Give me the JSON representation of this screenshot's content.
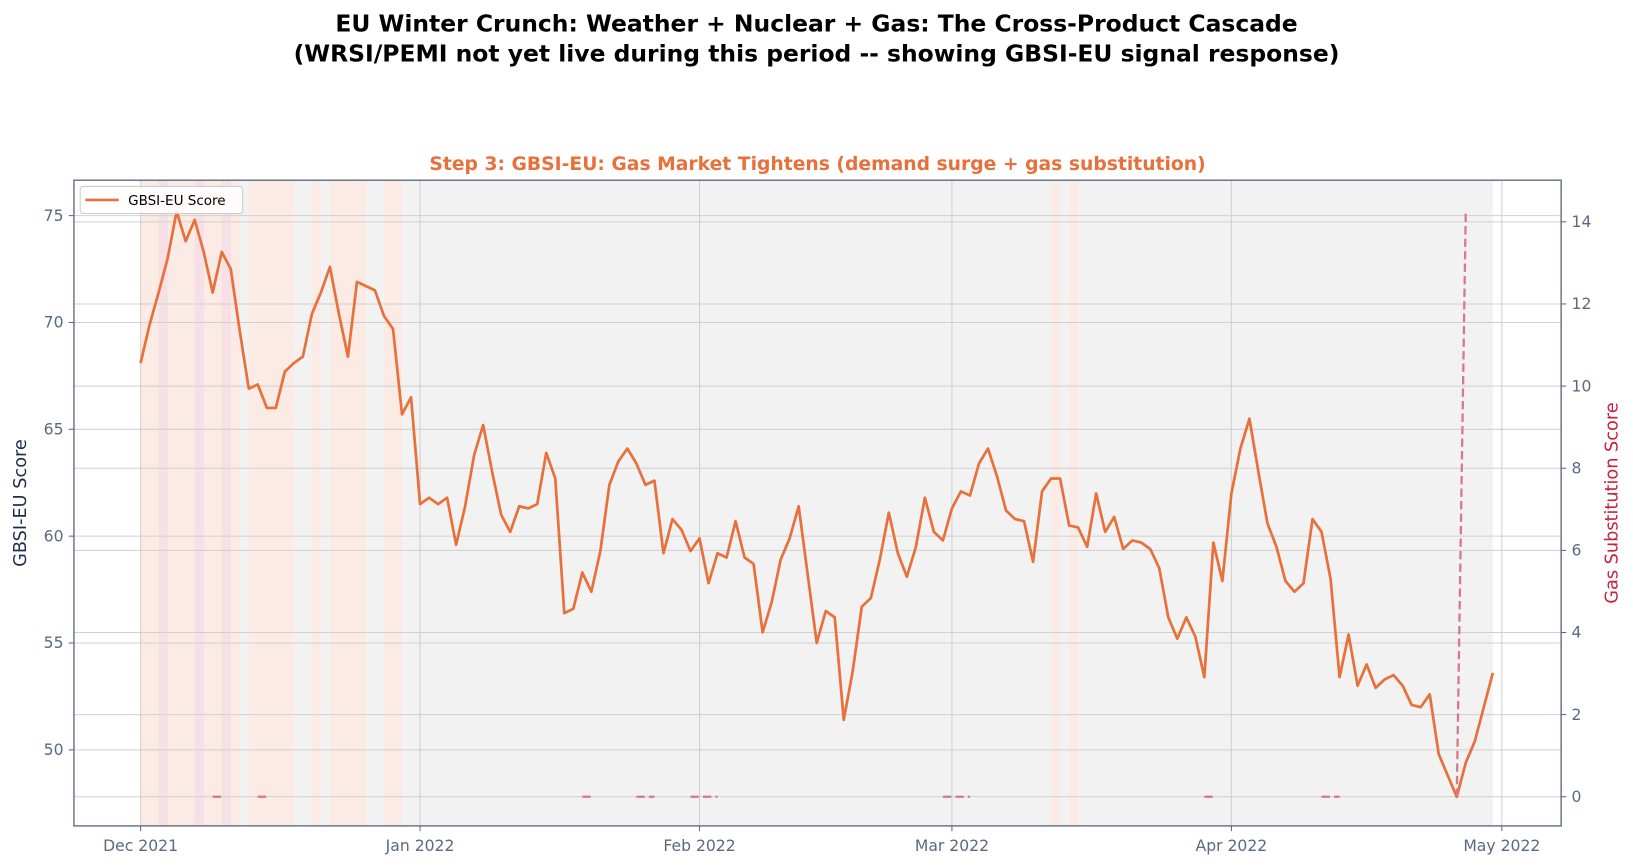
{
  "figure": {
    "title_line1": "EU Winter Crunch: Weather + Nuclear + Gas: The Cross-Product Cascade",
    "title_line2": "(WRSI/PEMI not yet live during this period -- showing GBSI-EU signal response)"
  },
  "chart_data": {
    "type": "line",
    "title": "Step 3: GBSI-EU: Gas Market Tightens (demand surge + gas substitution)",
    "title_color": "#e8703a",
    "ylabel": "GBSI-EU Score",
    "ylabel_color": "#1f2d4d",
    "y2label": "Gas Substitution Score",
    "y2label_color": "#c8213b",
    "ylim": [
      46.7,
      76.7
    ],
    "y2lim": [
      -0.6,
      15.0
    ],
    "yticks": [
      "50",
      "55",
      "60",
      "65",
      "70",
      "75"
    ],
    "y2ticks": [
      "0",
      "2",
      "4",
      "6",
      "8",
      "10",
      "12",
      "14"
    ],
    "xlim": [
      "2021-11-24",
      "2022-05-07"
    ],
    "xticks": [
      {
        "date": "2021-12-01",
        "label": "Dec 2021"
      },
      {
        "date": "2022-01-01",
        "label": "Jan 2022"
      },
      {
        "date": "2022-02-01",
        "label": "Feb 2022"
      },
      {
        "date": "2022-03-01",
        "label": "Mar 2022"
      },
      {
        "date": "2022-04-01",
        "label": "Apr 2022"
      },
      {
        "date": "2022-05-01",
        "label": "May 2022"
      }
    ],
    "grid": true,
    "legend": {
      "placement": "top-left",
      "entries": [
        "GBSI-EU Score"
      ]
    },
    "x": [
      "2021-12-01",
      "2021-12-02",
      "2021-12-03",
      "2021-12-04",
      "2021-12-05",
      "2021-12-06",
      "2021-12-07",
      "2021-12-08",
      "2021-12-09",
      "2021-12-10",
      "2021-12-11",
      "2021-12-12",
      "2021-12-13",
      "2021-12-14",
      "2021-12-15",
      "2021-12-16",
      "2021-12-17",
      "2021-12-18",
      "2021-12-19",
      "2021-12-20",
      "2021-12-21",
      "2021-12-22",
      "2021-12-23",
      "2021-12-24",
      "2021-12-25",
      "2021-12-26",
      "2021-12-27",
      "2021-12-28",
      "2021-12-29",
      "2021-12-30",
      "2021-12-31",
      "2022-01-01",
      "2022-01-02",
      "2022-01-03",
      "2022-01-04",
      "2022-01-05",
      "2022-01-06",
      "2022-01-07",
      "2022-01-08",
      "2022-01-09",
      "2022-01-10",
      "2022-01-11",
      "2022-01-12",
      "2022-01-13",
      "2022-01-14",
      "2022-01-15",
      "2022-01-16",
      "2022-01-17",
      "2022-01-18",
      "2022-01-19",
      "2022-01-20",
      "2022-01-21",
      "2022-01-22",
      "2022-01-23",
      "2022-01-24",
      "2022-01-25",
      "2022-01-26",
      "2022-01-27",
      "2022-01-28",
      "2022-01-29",
      "2022-01-30",
      "2022-01-31",
      "2022-02-01",
      "2022-02-02",
      "2022-02-03",
      "2022-02-04",
      "2022-02-05",
      "2022-02-06",
      "2022-02-07",
      "2022-02-08",
      "2022-02-09",
      "2022-02-10",
      "2022-02-11",
      "2022-02-12",
      "2022-02-13",
      "2022-02-14",
      "2022-02-15",
      "2022-02-16",
      "2022-02-17",
      "2022-02-18",
      "2022-02-19",
      "2022-02-20",
      "2022-02-21",
      "2022-02-22",
      "2022-02-23",
      "2022-02-24",
      "2022-02-25",
      "2022-02-26",
      "2022-02-27",
      "2022-02-28",
      "2022-03-01",
      "2022-03-02",
      "2022-03-03",
      "2022-03-04",
      "2022-03-05",
      "2022-03-06",
      "2022-03-07",
      "2022-03-08",
      "2022-03-09",
      "2022-03-10",
      "2022-03-11",
      "2022-03-12",
      "2022-03-13",
      "2022-03-14",
      "2022-03-15",
      "2022-03-16",
      "2022-03-17",
      "2022-03-18",
      "2022-03-19",
      "2022-03-20",
      "2022-03-21",
      "2022-03-22",
      "2022-03-23",
      "2022-03-24",
      "2022-03-25",
      "2022-03-26",
      "2022-03-27",
      "2022-03-28",
      "2022-03-29",
      "2022-03-30",
      "2022-03-31",
      "2022-04-01",
      "2022-04-02",
      "2022-04-03",
      "2022-04-04",
      "2022-04-05",
      "2022-04-06",
      "2022-04-07",
      "2022-04-08",
      "2022-04-09",
      "2022-04-10",
      "2022-04-11",
      "2022-04-12",
      "2022-04-13",
      "2022-04-14",
      "2022-04-15",
      "2022-04-16",
      "2022-04-17",
      "2022-04-18",
      "2022-04-19",
      "2022-04-20",
      "2022-04-21",
      "2022-04-22",
      "2022-04-23",
      "2022-04-24",
      "2022-04-25",
      "2022-04-26",
      "2022-04-27",
      "2022-04-28",
      "2022-04-29",
      "2022-04-30"
    ],
    "series": [
      {
        "name": "GBSI-EU Score",
        "axis": "left",
        "color": "#e8703a",
        "style": "solid",
        "values": [
          68.1,
          69.9,
          71.4,
          73.0,
          75.2,
          73.8,
          74.8,
          73.3,
          71.4,
          73.3,
          72.5,
          69.6,
          66.9,
          67.1,
          66.0,
          66.0,
          67.7,
          68.1,
          68.4,
          70.4,
          71.4,
          72.6,
          70.4,
          68.4,
          71.9,
          71.7,
          71.5,
          70.3,
          69.7,
          65.7,
          66.5,
          61.5,
          61.8,
          61.5,
          61.8,
          59.6,
          61.4,
          63.8,
          65.2,
          63.0,
          61.0,
          60.2,
          61.4,
          61.3,
          61.5,
          63.9,
          62.7,
          56.4,
          56.6,
          58.3,
          57.4,
          59.3,
          62.4,
          63.5,
          64.1,
          63.4,
          62.4,
          62.6,
          59.2,
          60.8,
          60.3,
          59.3,
          59.9,
          57.8,
          59.2,
          59.0,
          60.7,
          59.0,
          58.7,
          55.5,
          56.9,
          58.9,
          59.9,
          61.4,
          58.2,
          55.0,
          56.5,
          56.2,
          51.4,
          53.7,
          56.7,
          57.1,
          58.9,
          61.1,
          59.2,
          58.1,
          59.5,
          61.8,
          60.2,
          59.8,
          61.3,
          62.1,
          61.9,
          63.4,
          64.1,
          62.8,
          61.2,
          60.8,
          60.7,
          58.8,
          62.1,
          62.7,
          62.7,
          60.5,
          60.4,
          59.5,
          62.0,
          60.2,
          60.9,
          59.4,
          59.8,
          59.7,
          59.4,
          58.5,
          56.2,
          55.2,
          56.2,
          55.3,
          53.4,
          59.7,
          57.9,
          62.0,
          64.1,
          65.5,
          63.0,
          60.6,
          59.5,
          57.9,
          57.4,
          57.8,
          60.8,
          60.2,
          58.0,
          53.4,
          55.4,
          53.0,
          54.0,
          52.9,
          53.3,
          53.5,
          53.0,
          52.1,
          52.0,
          52.6,
          49.8,
          48.8,
          47.8,
          49.4,
          50.4,
          52.0,
          53.6
        ]
      },
      {
        "axis": "right",
        "color": "#d9788a",
        "style": "dashed",
        "values": [
          null,
          null,
          null,
          null,
          null,
          null,
          null,
          null,
          0,
          0,
          null,
          null,
          null,
          0,
          0,
          null,
          null,
          null,
          null,
          null,
          null,
          null,
          null,
          null,
          null,
          null,
          null,
          null,
          null,
          null,
          null,
          null,
          null,
          null,
          null,
          null,
          null,
          null,
          null,
          null,
          null,
          null,
          null,
          null,
          null,
          null,
          null,
          null,
          null,
          0,
          0,
          null,
          null,
          null,
          null,
          0,
          0,
          0,
          null,
          null,
          null,
          0,
          0,
          0,
          0,
          null,
          null,
          null,
          null,
          null,
          null,
          null,
          null,
          null,
          null,
          null,
          null,
          null,
          null,
          null,
          null,
          null,
          null,
          null,
          null,
          null,
          null,
          null,
          null,
          0,
          0,
          0,
          0,
          null,
          null,
          null,
          null,
          null,
          null,
          null,
          null,
          null,
          null,
          null,
          null,
          null,
          null,
          null,
          null,
          null,
          null,
          null,
          null,
          null,
          null,
          null,
          null,
          null,
          0,
          0,
          null,
          null,
          null,
          null,
          null,
          null,
          null,
          null,
          null,
          null,
          null,
          0,
          0,
          0,
          null,
          null,
          null,
          null,
          null,
          null,
          null,
          null,
          null,
          null,
          null,
          null,
          0,
          14.3,
          null,
          null,
          null
        ]
      }
    ],
    "shaded_regions": {
      "background": {
        "color": "#f2f2f2",
        "from": "2021-12-01",
        "to": "2022-04-30"
      },
      "orange": {
        "color": "#fbebe4",
        "days": [
          "2021-12-01",
          "2021-12-02",
          "2021-12-04",
          "2021-12-05",
          "2021-12-06",
          "2021-12-08",
          "2021-12-09",
          "2021-12-11",
          "2021-12-13",
          "2021-12-14",
          "2021-12-15",
          "2021-12-16",
          "2021-12-17",
          "2021-12-20",
          "2021-12-22",
          "2021-12-23",
          "2021-12-24",
          "2021-12-25",
          "2021-12-28",
          "2021-12-29",
          "2022-03-12",
          "2022-03-14"
        ]
      },
      "pink": {
        "color": "#f6e0e6",
        "days": [
          "2021-12-03",
          "2021-12-07",
          "2021-12-10"
        ]
      }
    }
  }
}
